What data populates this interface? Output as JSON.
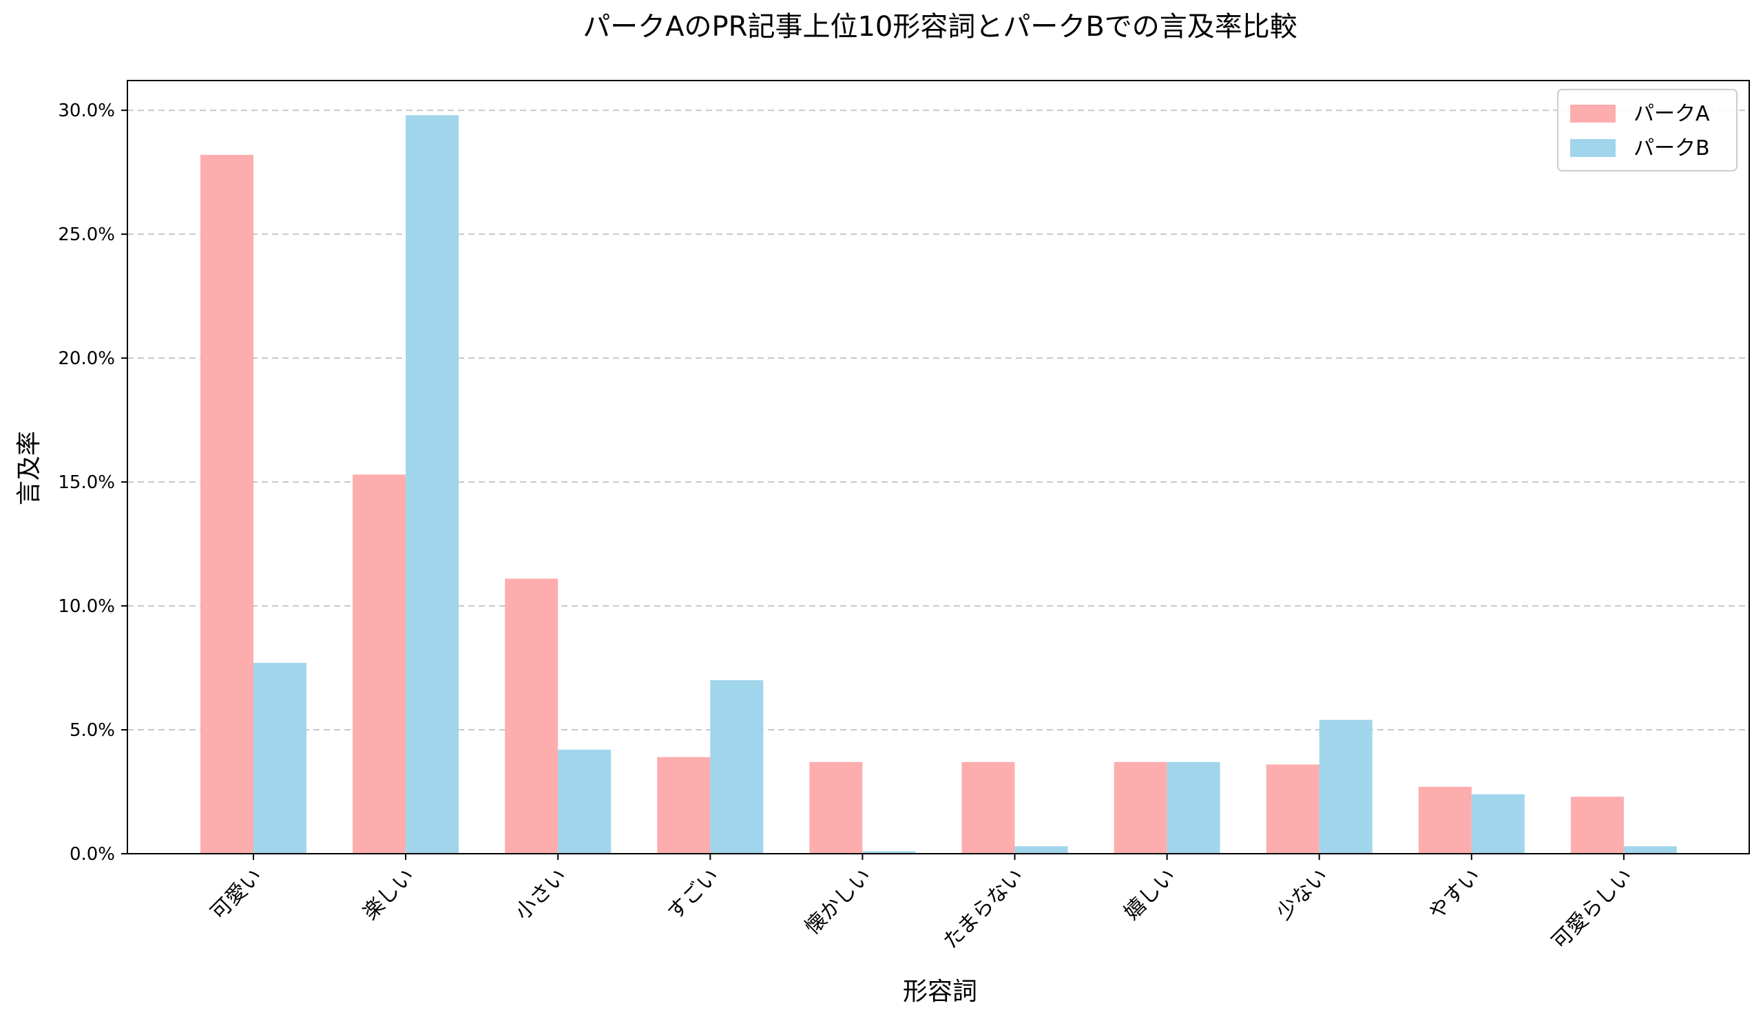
{
  "chart_data": {
    "type": "bar",
    "title": "パークAのPR記事上位10形容詞とパークBでの言及率比較",
    "xlabel": "形容詞",
    "ylabel": "言及率",
    "categories": [
      "可愛い",
      "楽しい",
      "小さい",
      "すごい",
      "懐かしい",
      "たまらない",
      "嬉しい",
      "少ない",
      "やすい",
      "可愛らしい"
    ],
    "series": [
      {
        "name": "パークA",
        "color": "#fdadad",
        "values": [
          28.2,
          15.3,
          11.1,
          3.9,
          3.7,
          3.7,
          3.7,
          3.6,
          2.7,
          2.3
        ]
      },
      {
        "name": "パークB",
        "color": "#a0d5ec",
        "values": [
          7.7,
          29.8,
          4.2,
          7.0,
          0.1,
          0.3,
          3.7,
          5.4,
          2.4,
          0.3
        ]
      }
    ],
    "ylim": [
      0,
      31.2
    ],
    "yticks": [
      0,
      5,
      10,
      15,
      20,
      25,
      30
    ],
    "ytick_labels": [
      "0.0%",
      "5.0%",
      "10.0%",
      "15.0%",
      "20.0%",
      "25.0%",
      "30.0%"
    ],
    "grid": "y-dashed",
    "legend_position": "top-right"
  }
}
